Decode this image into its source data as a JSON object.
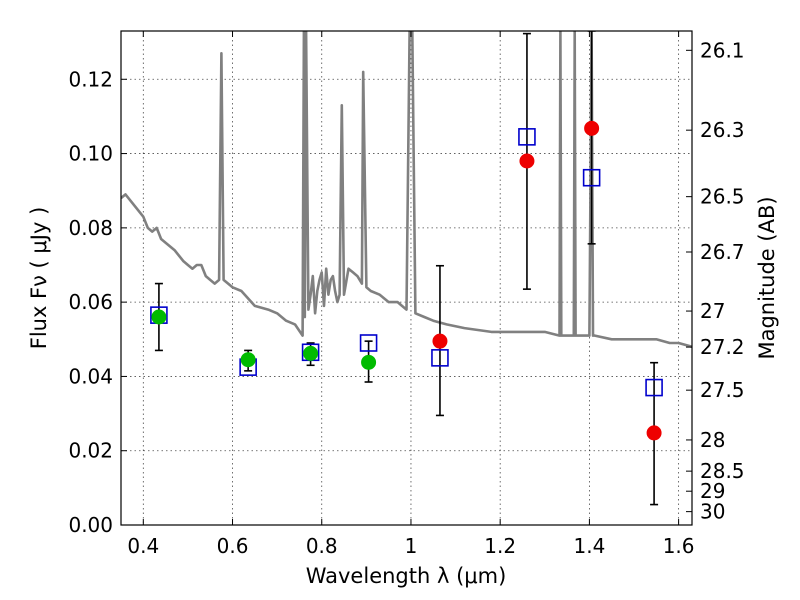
{
  "chart_data": {
    "type": "scatter",
    "title": "",
    "xlabel": "Wavelength  λ (μm)",
    "ylabel": "Flux  Fν  ( μJy )",
    "ylabel_right": "Magnitude (AB)",
    "xlim": [
      0.35,
      1.63
    ],
    "ylim": [
      0.0,
      0.133
    ],
    "grid": true,
    "x_ticks": [
      0.4,
      0.6,
      0.8,
      1.0,
      1.2,
      1.4,
      1.6
    ],
    "x_tick_labels": [
      "0.4",
      "0.6",
      "0.8",
      "1",
      "1.2",
      "1.4",
      "1.6"
    ],
    "y_ticks": [
      0.0,
      0.02,
      0.04,
      0.06,
      0.08,
      0.1,
      0.12
    ],
    "y_tick_labels": [
      "0.00",
      "0.02",
      "0.04",
      "0.06",
      "0.08",
      "0.10",
      "0.12"
    ],
    "right_ticks": [
      {
        "label": "26.1",
        "flux": 0.1278
      },
      {
        "label": "26.3",
        "flux": 0.1063
      },
      {
        "label": "26.5",
        "flux": 0.0884
      },
      {
        "label": "26.7",
        "flux": 0.0735
      },
      {
        "label": "27",
        "flux": 0.0576
      },
      {
        "label": "27.2",
        "flux": 0.0479
      },
      {
        "label": "27.5",
        "flux": 0.0363
      },
      {
        "label": "28",
        "flux": 0.0229
      },
      {
        "label": "28.5",
        "flux": 0.0145
      },
      {
        "label": "29",
        "flux": 0.0091
      },
      {
        "label": "30",
        "flux": 0.0036
      }
    ],
    "series": [
      {
        "kind": "line",
        "color": "#808080",
        "x": [
          0.35,
          0.36,
          0.38,
          0.4,
          0.41,
          0.42,
          0.43,
          0.44,
          0.45,
          0.47,
          0.49,
          0.5,
          0.51,
          0.52,
          0.53,
          0.54,
          0.55,
          0.56,
          0.57,
          0.575,
          0.58,
          0.6,
          0.62,
          0.65,
          0.68,
          0.7,
          0.72,
          0.74,
          0.757,
          0.76,
          0.762,
          0.765,
          0.77,
          0.775,
          0.78,
          0.785,
          0.79,
          0.795,
          0.8,
          0.805,
          0.81,
          0.815,
          0.82,
          0.825,
          0.83,
          0.835,
          0.84,
          0.845,
          0.85,
          0.86,
          0.87,
          0.88,
          0.89,
          0.893,
          0.9,
          0.91,
          0.93,
          0.95,
          0.97,
          0.98,
          0.99,
          0.997,
          1.0,
          1.003,
          1.01,
          1.03,
          1.05,
          1.08,
          1.12,
          1.18,
          1.25,
          1.3,
          1.333,
          1.335,
          1.337,
          1.34,
          1.365,
          1.367,
          1.369,
          1.375,
          1.4,
          1.405,
          1.408,
          1.412,
          1.45,
          1.5,
          1.55,
          1.58,
          1.6,
          1.63
        ],
        "y": [
          0.088,
          0.089,
          0.086,
          0.083,
          0.08,
          0.079,
          0.08,
          0.077,
          0.076,
          0.074,
          0.071,
          0.07,
          0.069,
          0.07,
          0.07,
          0.067,
          0.066,
          0.065,
          0.066,
          0.127,
          0.066,
          0.064,
          0.063,
          0.059,
          0.058,
          0.057,
          0.055,
          0.054,
          0.051,
          0.133,
          0.056,
          0.133,
          0.058,
          0.062,
          0.067,
          0.057,
          0.063,
          0.066,
          0.068,
          0.059,
          0.069,
          0.062,
          0.066,
          0.067,
          0.063,
          0.06,
          0.062,
          0.113,
          0.062,
          0.069,
          0.068,
          0.067,
          0.065,
          0.122,
          0.064,
          0.063,
          0.062,
          0.06,
          0.06,
          0.059,
          0.058,
          0.133,
          0.133,
          0.133,
          0.057,
          0.056,
          0.055,
          0.054,
          0.053,
          0.052,
          0.052,
          0.052,
          0.051,
          0.133,
          0.051,
          0.051,
          0.051,
          0.133,
          0.051,
          0.051,
          0.051,
          0.133,
          0.051,
          0.051,
          0.05,
          0.05,
          0.05,
          0.049,
          0.049,
          0.048
        ]
      },
      {
        "kind": "model",
        "marker": "open-square",
        "color": "#0000cc",
        "x": [
          0.435,
          0.635,
          0.775,
          0.905,
          1.065,
          1.26,
          1.405,
          1.545
        ],
        "y": [
          0.0565,
          0.0425,
          0.0465,
          0.049,
          0.045,
          0.1045,
          0.0935,
          0.037
        ]
      },
      {
        "kind": "detected",
        "marker": "filled-circle",
        "color": "#00bb00",
        "x": [
          0.435,
          0.635,
          0.775,
          0.905
        ],
        "y": [
          0.056,
          0.0445,
          0.0462,
          0.0438
        ],
        "err_low": [
          0.047,
          0.0415,
          0.043,
          0.0385
        ],
        "err_high": [
          0.065,
          0.047,
          0.049,
          0.0495
        ]
      },
      {
        "kind": "detected",
        "marker": "filled-circle",
        "color": "#ee0000",
        "x": [
          1.065,
          1.26,
          1.405,
          1.545
        ],
        "y": [
          0.0495,
          0.098,
          0.1068,
          0.0248
        ],
        "err_low": [
          0.0295,
          0.0635,
          0.0757,
          0.0055
        ],
        "err_high": [
          0.0698,
          0.1323,
          0.133,
          0.0437
        ]
      }
    ]
  }
}
